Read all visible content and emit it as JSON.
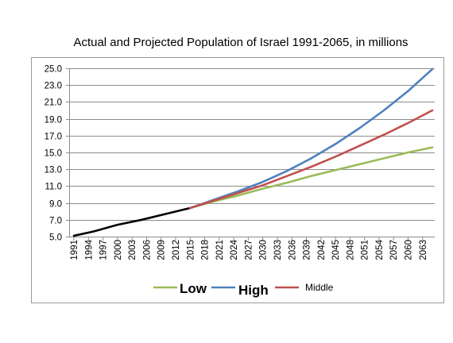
{
  "chart_data": {
    "type": "line",
    "title": "Actual and Projected Population of Israel 1991-2065, in millions",
    "xlabel": "",
    "ylabel": "",
    "xlim": [
      1991,
      2065
    ],
    "ylim": [
      5.0,
      25.0
    ],
    "y_ticks": [
      "5.0",
      "7.0",
      "9.0",
      "11.0",
      "13.0",
      "15.0",
      "17.0",
      "19.0",
      "21.0",
      "23.0",
      "25.0"
    ],
    "x_ticks": [
      "1991",
      "1994",
      "1997",
      "2000",
      "2003",
      "2006",
      "2009",
      "2012",
      "2015",
      "2018",
      "2021",
      "2024",
      "2027",
      "2030",
      "2033",
      "2036",
      "2039",
      "2042",
      "2045",
      "2048",
      "2051",
      "2054",
      "2057",
      "2060",
      "2063"
    ],
    "grid": "horizontal",
    "legend_position": "bottom",
    "series": [
      {
        "name": "",
        "color": "#000000",
        "x": [
          1991,
          1995,
          2000,
          2005,
          2010,
          2015
        ],
        "values": [
          5.1,
          5.6,
          6.4,
          7.0,
          7.7,
          8.4
        ]
      },
      {
        "name": "Low",
        "color": "#9bbb59",
        "x": [
          2015,
          2020,
          2025,
          2030,
          2035,
          2040,
          2045,
          2050,
          2055,
          2060,
          2065
        ],
        "values": [
          8.4,
          9.2,
          9.9,
          10.7,
          11.4,
          12.2,
          12.9,
          13.6,
          14.3,
          15.0,
          15.6
        ]
      },
      {
        "name": "High",
        "color": "#4f81bd",
        "x": [
          2015,
          2020,
          2025,
          2030,
          2035,
          2040,
          2045,
          2050,
          2055,
          2060,
          2065
        ],
        "values": [
          8.4,
          9.4,
          10.4,
          11.5,
          12.8,
          14.3,
          16.0,
          17.9,
          20.0,
          22.3,
          24.9
        ]
      },
      {
        "name": "Middle",
        "color": "#c0504d",
        "x": [
          2015,
          2020,
          2025,
          2030,
          2035,
          2040,
          2045,
          2050,
          2055,
          2060,
          2065
        ],
        "values": [
          8.4,
          9.3,
          10.2,
          11.1,
          12.2,
          13.3,
          14.5,
          15.8,
          17.1,
          18.5,
          20.0
        ]
      }
    ]
  }
}
